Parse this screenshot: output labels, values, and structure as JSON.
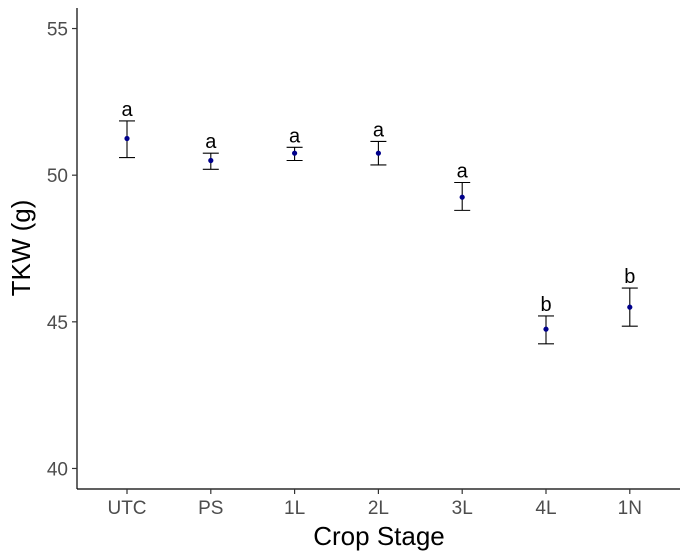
{
  "chart_data": {
    "type": "scatter",
    "title": "",
    "xlabel": "Crop Stage",
    "ylabel": "TKW (g)",
    "categories": [
      "UTC",
      "PS",
      "1L",
      "2L",
      "3L",
      "4L",
      "1N"
    ],
    "values": [
      51.25,
      50.5,
      50.75,
      50.75,
      49.25,
      44.75,
      45.5
    ],
    "error_low": [
      50.6,
      50.2,
      50.5,
      50.35,
      48.8,
      44.25,
      44.85
    ],
    "error_high": [
      51.85,
      50.75,
      50.95,
      51.15,
      49.75,
      45.2,
      46.15
    ],
    "group_letters": [
      "a",
      "a",
      "a",
      "a",
      "a",
      "b",
      "b"
    ],
    "ylim": [
      39.3,
      55.7
    ],
    "yticks": [
      40,
      45,
      50,
      55
    ],
    "grid": false,
    "point_color": "#00008b",
    "errorbar_color": "#000000"
  }
}
